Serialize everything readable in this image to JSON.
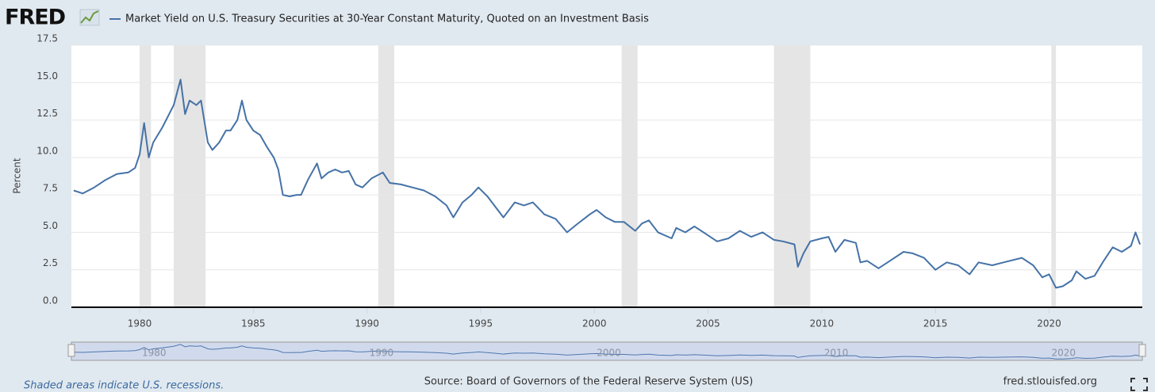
{
  "logo": "FRED",
  "chart_data": {
    "type": "line",
    "title": "Market Yield on U.S. Treasury Securities at 30-Year Constant Maturity, Quoted on an Investment Basis",
    "y_label": "Percent",
    "note": "Shaded areas indicate U.S. recessions.",
    "source": "Source: Board of Governors of the Federal Reserve System (US)",
    "site": "fred.stlouisfed.org",
    "xlim": [
      1977.0,
      2024.1
    ],
    "ylim": [
      0,
      17.5
    ],
    "xticks": [
      1980,
      1985,
      1990,
      1995,
      2000,
      2005,
      2010,
      2015,
      2020
    ],
    "yticks": [
      {
        "value": 0,
        "label": "0.0"
      },
      2.5,
      {
        "value": 5,
        "label": "5.0"
      },
      7.5,
      {
        "value": 10,
        "label": "10.0"
      },
      12.5,
      {
        "value": 15,
        "label": "15.0"
      },
      17.5
    ],
    "navigator_ticks": [
      1980,
      1990,
      2000,
      2010,
      2020
    ],
    "grid": true,
    "recessions": [
      [
        1980.0,
        1980.5
      ],
      [
        1981.5,
        1982.9
      ],
      [
        1990.5,
        1991.2
      ],
      [
        2001.2,
        2001.9
      ],
      [
        2007.9,
        2009.5
      ],
      [
        2020.1,
        2020.3
      ]
    ],
    "series": [
      {
        "name": "Market Yield on U.S. Treasury Securities at 30-Year Constant Maturity, Quoted on an Investment Basis",
        "color": "#4572a7",
        "x": [
          1977.1,
          1977.5,
          1978.0,
          1978.5,
          1979.0,
          1979.5,
          1979.8,
          1980.0,
          1980.2,
          1980.4,
          1980.6,
          1981.0,
          1981.5,
          1981.8,
          1982.0,
          1982.2,
          1982.5,
          1982.7,
          1983.0,
          1983.2,
          1983.5,
          1983.8,
          1984.0,
          1984.3,
          1984.5,
          1984.7,
          1985.0,
          1985.3,
          1985.6,
          1985.9,
          1986.1,
          1986.3,
          1986.6,
          1986.9,
          1987.1,
          1987.4,
          1987.8,
          1988.0,
          1988.3,
          1988.6,
          1988.9,
          1989.2,
          1989.5,
          1989.8,
          1990.2,
          1990.7,
          1991.0,
          1991.5,
          1992.0,
          1992.5,
          1993.0,
          1993.5,
          1993.8,
          1994.2,
          1994.6,
          1994.9,
          1995.3,
          1995.6,
          1996.0,
          1996.5,
          1996.9,
          1997.3,
          1997.8,
          1998.3,
          1998.8,
          1999.2,
          1999.8,
          2000.1,
          2000.5,
          2000.9,
          2001.3,
          2001.8,
          2002.1,
          2002.4,
          2002.8,
          2003.4,
          2003.6,
          2004.0,
          2004.4,
          2004.9,
          2005.4,
          2005.9,
          2006.4,
          2006.9,
          2007.4,
          2007.9,
          2008.3,
          2008.8,
          2008.95,
          2009.2,
          2009.5,
          2010.0,
          2010.3,
          2010.6,
          2011.0,
          2011.5,
          2011.7,
          2012.0,
          2012.5,
          2013.0,
          2013.6,
          2014.0,
          2014.5,
          2015.0,
          2015.5,
          2016.0,
          2016.5,
          2016.9,
          2017.5,
          2018.0,
          2018.8,
          2019.3,
          2019.7,
          2020.0,
          2020.3,
          2020.6,
          2021.0,
          2021.2,
          2021.6,
          2022.0,
          2022.4,
          2022.8,
          2023.2,
          2023.6,
          2023.8,
          2024.0
        ],
        "values": [
          7.8,
          7.6,
          8.0,
          8.5,
          8.9,
          9.0,
          9.3,
          10.2,
          12.3,
          10.0,
          11.0,
          12.0,
          13.5,
          15.2,
          12.9,
          13.8,
          13.5,
          13.8,
          11.0,
          10.5,
          11.0,
          11.8,
          11.8,
          12.5,
          13.8,
          12.5,
          11.8,
          11.5,
          10.7,
          10.0,
          9.2,
          7.5,
          7.4,
          7.5,
          7.5,
          8.5,
          9.6,
          8.6,
          9.0,
          9.2,
          9.0,
          9.1,
          8.2,
          8.0,
          8.6,
          9.0,
          8.3,
          8.2,
          8.0,
          7.8,
          7.4,
          6.8,
          6.0,
          7.0,
          7.5,
          8.0,
          7.4,
          6.8,
          6.0,
          7.0,
          6.8,
          7.0,
          6.2,
          5.9,
          5.0,
          5.5,
          6.2,
          6.5,
          6.0,
          5.7,
          5.7,
          5.1,
          5.6,
          5.8,
          5.0,
          4.6,
          5.3,
          5.0,
          5.4,
          4.9,
          4.4,
          4.6,
          5.1,
          4.7,
          5.0,
          4.5,
          4.4,
          4.2,
          2.7,
          3.6,
          4.4,
          4.6,
          4.7,
          3.7,
          4.5,
          4.3,
          3.0,
          3.1,
          2.6,
          3.1,
          3.7,
          3.6,
          3.3,
          2.5,
          3.0,
          2.8,
          2.2,
          3.0,
          2.8,
          3.0,
          3.3,
          2.8,
          2.0,
          2.2,
          1.3,
          1.4,
          1.8,
          2.4,
          1.9,
          2.1,
          3.1,
          4.0,
          3.7,
          4.1,
          5.0,
          4.2
        ]
      }
    ]
  }
}
